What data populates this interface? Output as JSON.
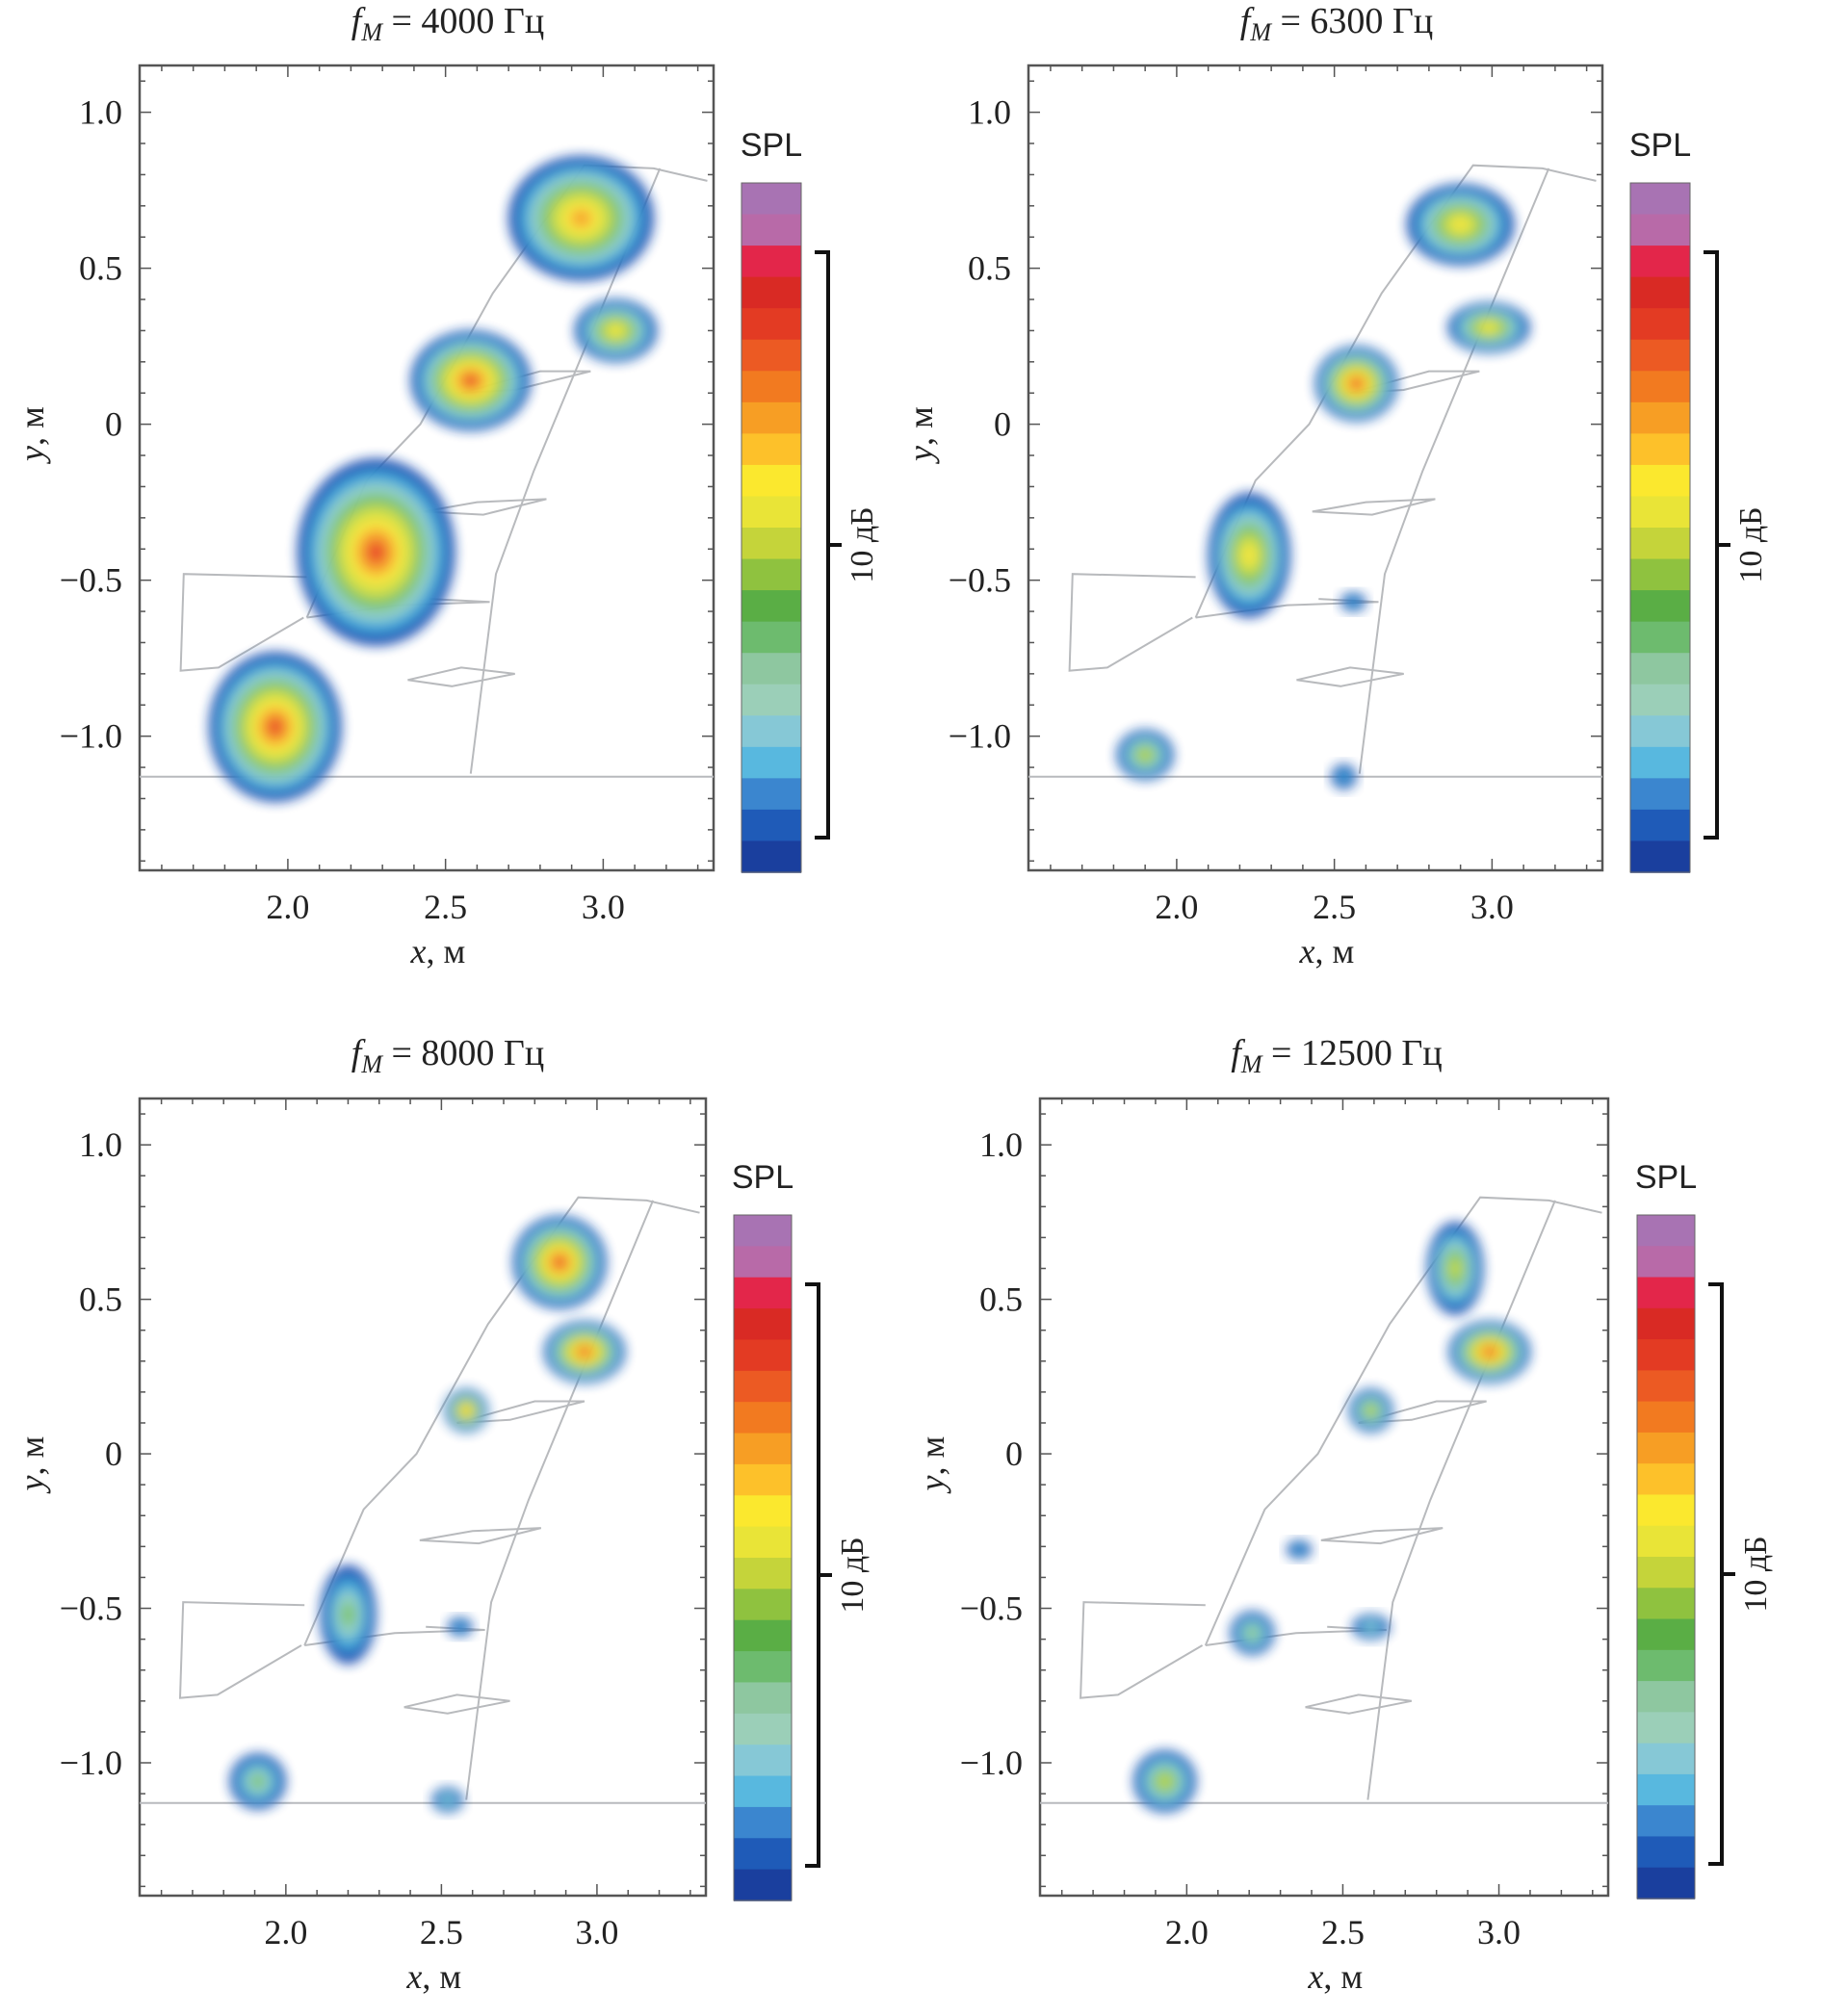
{
  "figure": {
    "units": {
      "x": "x, м",
      "y": "y, м"
    }
  },
  "colors": {
    "scale": [
      "#1a3f9e",
      "#1f5bb8",
      "#3b86cf",
      "#58b8df",
      "#86c8d6",
      "#9bcfb8",
      "#8ec7a0",
      "#6dbb6e",
      "#5aae45",
      "#8fc23f",
      "#c5d43a",
      "#e9e437",
      "#fbe82e",
      "#fdc12a",
      "#f79e24",
      "#f27a20",
      "#ec5a23",
      "#e33b23",
      "#d92a24",
      "#e3264a",
      "#b86aa8",
      "#a873b3"
    ],
    "blob": [
      "#1f4fb3",
      "#3aa3d9",
      "#8fcfc9",
      "#7cc36b",
      "#c9dc45",
      "#f6e73a",
      "#f7a32b",
      "#ea4b25",
      "#d9261f"
    ],
    "wing": "#b8babd"
  },
  "chart_data": [
    {
      "type": "heatmap",
      "title_prefix": "f",
      "title_sub": "M",
      "title_value": " = 4000 Гц",
      "xlabel_var": "x",
      "xlabel_unit": ", м",
      "ylabel_var": "y",
      "ylabel_unit": ", м",
      "xlim": [
        1.53,
        3.35
      ],
      "ylim": [
        -1.43,
        1.15
      ],
      "xticks": [
        "2.0",
        "2.5",
        "3.0"
      ],
      "yticks": [
        "1.0",
        "0.5",
        "0",
        "−0.5",
        "−1.0"
      ],
      "colorbar_label": "SPL",
      "colorbar_scale": "10 дБ",
      "blobs": [
        {
          "name": "tip-upper",
          "cx": 2.93,
          "cy": 0.66,
          "rx": 0.23,
          "ry": 0.2,
          "peak": 0.72
        },
        {
          "name": "tip-lower",
          "cx": 3.04,
          "cy": 0.3,
          "rx": 0.13,
          "ry": 0.1,
          "peak": 0.66
        },
        {
          "name": "mid-wing",
          "cx": 2.58,
          "cy": 0.14,
          "rx": 0.19,
          "ry": 0.16,
          "peak": 0.86
        },
        {
          "name": "flap-upper",
          "cx": 2.28,
          "cy": -0.41,
          "rx": 0.25,
          "ry": 0.3,
          "peak": 0.9
        },
        {
          "name": "root",
          "cx": 1.96,
          "cy": -0.97,
          "rx": 0.21,
          "ry": 0.24,
          "peak": 0.88
        }
      ]
    },
    {
      "type": "heatmap",
      "title_prefix": "f",
      "title_sub": "M",
      "title_value": " = 6300 Гц",
      "xlabel_var": "x",
      "xlabel_unit": ", м",
      "ylabel_var": "y",
      "ylabel_unit": ", м",
      "xlim": [
        1.53,
        3.35
      ],
      "ylim": [
        -1.43,
        1.15
      ],
      "xticks": [
        "2.0",
        "2.5",
        "3.0"
      ],
      "yticks": [
        "1.0",
        "0.5",
        "0",
        "−0.5",
        "−1.0"
      ],
      "colorbar_label": "SPL",
      "colorbar_scale": "10 дБ",
      "blobs": [
        {
          "name": "tip-upper",
          "cx": 2.9,
          "cy": 0.64,
          "rx": 0.17,
          "ry": 0.13,
          "peak": 0.64
        },
        {
          "name": "tip-lower",
          "cx": 2.99,
          "cy": 0.31,
          "rx": 0.13,
          "ry": 0.08,
          "peak": 0.6
        },
        {
          "name": "mid-wing",
          "cx": 2.57,
          "cy": 0.13,
          "rx": 0.13,
          "ry": 0.12,
          "peak": 0.9
        },
        {
          "name": "flap",
          "cx": 2.23,
          "cy": -0.42,
          "rx": 0.13,
          "ry": 0.2,
          "peak": 0.6
        },
        {
          "name": "root",
          "cx": 1.9,
          "cy": -1.06,
          "rx": 0.09,
          "ry": 0.08,
          "peak": 0.48
        },
        {
          "name": "spot-a",
          "cx": 2.56,
          "cy": -0.57,
          "rx": 0.04,
          "ry": 0.03,
          "peak": 0.1
        },
        {
          "name": "spot-b",
          "cx": 2.53,
          "cy": -1.13,
          "rx": 0.04,
          "ry": 0.04,
          "peak": 0.1
        }
      ]
    },
    {
      "type": "heatmap",
      "title_prefix": "f",
      "title_sub": "M",
      "title_value": " = 8000 Гц",
      "xlabel_var": "x",
      "xlabel_unit": ", м",
      "ylabel_var": "y",
      "ylabel_unit": ", м",
      "xlim": [
        1.53,
        3.35
      ],
      "ylim": [
        -1.43,
        1.15
      ],
      "xticks": [
        "2.0",
        "2.5",
        "3.0"
      ],
      "yticks": [
        "1.0",
        "0.5",
        "0",
        "−0.5",
        "−1.0"
      ],
      "colorbar_label": "SPL",
      "colorbar_scale": "10 дБ",
      "blobs": [
        {
          "name": "tip-upper",
          "cx": 2.88,
          "cy": 0.62,
          "rx": 0.15,
          "ry": 0.15,
          "peak": 0.82
        },
        {
          "name": "tip-lower",
          "cx": 2.96,
          "cy": 0.33,
          "rx": 0.13,
          "ry": 0.1,
          "peak": 0.86
        },
        {
          "name": "mid-wing",
          "cx": 2.58,
          "cy": 0.14,
          "rx": 0.07,
          "ry": 0.07,
          "peak": 0.74
        },
        {
          "name": "flap",
          "cx": 2.2,
          "cy": -0.52,
          "rx": 0.09,
          "ry": 0.16,
          "peak": 0.42
        },
        {
          "name": "root",
          "cx": 1.91,
          "cy": -1.06,
          "rx": 0.09,
          "ry": 0.09,
          "peak": 0.4
        },
        {
          "name": "spot-a",
          "cx": 2.56,
          "cy": -0.56,
          "rx": 0.04,
          "ry": 0.03,
          "peak": 0.1
        },
        {
          "name": "spot-b",
          "cx": 2.52,
          "cy": -1.12,
          "rx": 0.05,
          "ry": 0.04,
          "peak": 0.22
        }
      ]
    },
    {
      "type": "heatmap",
      "title_prefix": "f",
      "title_sub": "M",
      "title_value": " = 12500 Гц",
      "xlabel_var": "x",
      "xlabel_unit": ", м",
      "ylabel_var": "y",
      "ylabel_unit": ", м",
      "xlim": [
        1.53,
        3.35
      ],
      "ylim": [
        -1.43,
        1.15
      ],
      "xticks": [
        "2.0",
        "2.5",
        "3.0"
      ],
      "yticks": [
        "1.0",
        "0.5",
        "0",
        "−0.5",
        "−1.0"
      ],
      "colorbar_label": "SPL",
      "colorbar_scale": "10 дБ",
      "blobs": [
        {
          "name": "tip-upper",
          "cx": 2.86,
          "cy": 0.6,
          "rx": 0.09,
          "ry": 0.15,
          "peak": 0.45
        },
        {
          "name": "tip-lower",
          "cx": 2.97,
          "cy": 0.33,
          "rx": 0.13,
          "ry": 0.1,
          "peak": 0.9
        },
        {
          "name": "mid-wing",
          "cx": 2.59,
          "cy": 0.14,
          "rx": 0.07,
          "ry": 0.07,
          "peak": 0.55
        },
        {
          "name": "spot-c",
          "cx": 2.36,
          "cy": -0.31,
          "rx": 0.04,
          "ry": 0.03,
          "peak": 0.1
        },
        {
          "name": "flap",
          "cx": 2.21,
          "cy": -0.58,
          "rx": 0.07,
          "ry": 0.07,
          "peak": 0.4
        },
        {
          "name": "spot-a",
          "cx": 2.59,
          "cy": -0.56,
          "rx": 0.06,
          "ry": 0.04,
          "peak": 0.28
        },
        {
          "name": "root",
          "cx": 1.93,
          "cy": -1.06,
          "rx": 0.1,
          "ry": 0.1,
          "peak": 0.45
        }
      ]
    }
  ]
}
